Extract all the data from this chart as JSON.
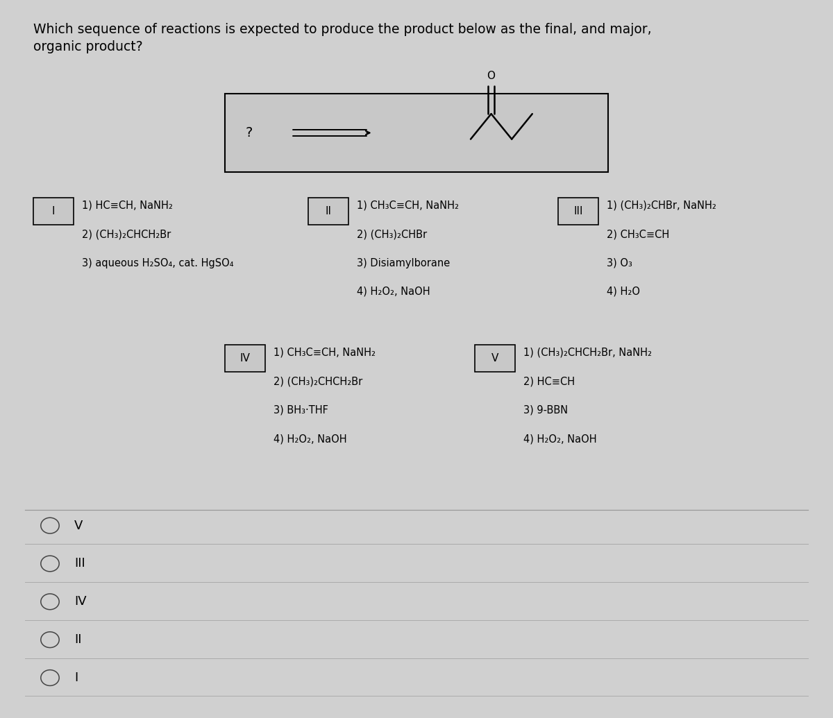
{
  "title_line1": "Which sequence of reactions is expected to produce the product below as the final, and major,",
  "title_line2": "organic product?",
  "bg_color": "#d0d0d0",
  "text_color": "#000000",
  "options": {
    "I": {
      "label": "I",
      "steps": [
        "1) HC≡CH, NaNH₂",
        "2) (CH₃)₂CHCH₂Br",
        "3) aqueous H₂SO₄, cat. HgSO₄"
      ]
    },
    "II": {
      "label": "II",
      "steps": [
        "1) CH₃C≡CH, NaNH₂",
        "2) (CH₃)₂CHBr",
        "3) Disiamylborane",
        "4) H₂O₂, NaOH"
      ]
    },
    "III": {
      "label": "III",
      "steps": [
        "1) (CH₃)₂CHBr, NaNH₂",
        "2) CH₃C≡CH",
        "3) O₃",
        "4) H₂O"
      ]
    },
    "IV": {
      "label": "IV",
      "steps": [
        "1) CH₃C≡CH, NaNH₂",
        "2) (CH₃)₂CHCH₂Br",
        "3) BH₃·THF",
        "4) H₂O₂, NaOH"
      ]
    },
    "V": {
      "label": "V",
      "steps": [
        "1) (CH₃)₂CHCH₂Br, NaNH₂",
        "2) HC≡CH",
        "3) 9-BBN",
        "4) H₂O₂, NaOH"
      ]
    }
  },
  "answer_choices": [
    "V",
    "III",
    "IV",
    "II",
    "I"
  ]
}
